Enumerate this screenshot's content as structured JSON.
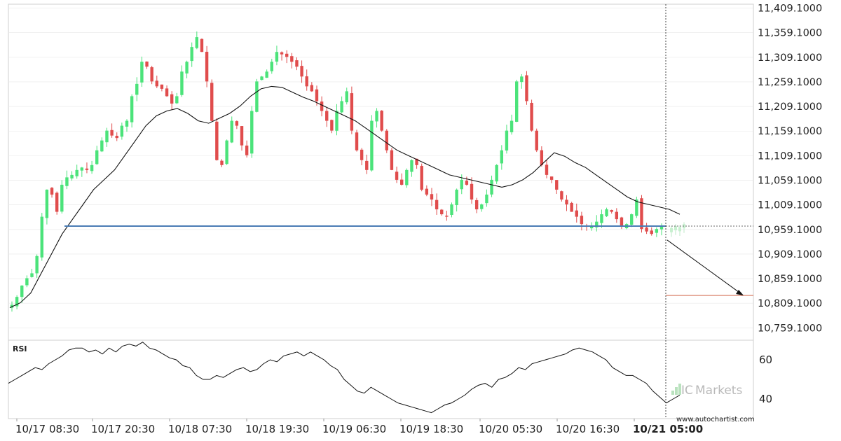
{
  "chart_data": [
    {
      "type": "candlestick",
      "name": "price-panel",
      "y_tick_labels": [
        "11,409.1000",
        "11,359.1000",
        "11,309.1000",
        "11,259.1000",
        "11,209.1000",
        "11,159.1000",
        "11,109.1000",
        "11,059.1000",
        "11,009.1000",
        "10,959.1000",
        "10,909.1000",
        "10,859.1000",
        "10,809.1000",
        "10,759.1000"
      ],
      "ylim": [
        10734,
        11417
      ],
      "x_tick_labels": [
        "10/17 08:30",
        "10/17 20:30",
        "10/18 07:30",
        "10/18 19:30",
        "10/19 06:30",
        "10/19 18:30",
        "10/20 05:30",
        "10/20 16:30",
        "10/21 05:00"
      ],
      "highlight_x_label": "10/21 05:00",
      "support_level": 10966,
      "target_level": 10825,
      "ohlc_anchor_closes": [
        10806,
        10822,
        10845,
        10860,
        10870,
        10905,
        10985,
        11040,
        11030,
        10995,
        11050,
        11065,
        11070,
        11080,
        11085,
        11080,
        11090,
        11120,
        11140,
        11160,
        11150,
        11145,
        11170,
        11180,
        11230,
        11255,
        11300,
        11290,
        11260,
        11250,
        11245,
        11230,
        11215,
        11230,
        11280,
        11300,
        11330,
        11350,
        11320,
        11260,
        11180,
        11100,
        11090,
        11140,
        11180,
        11170,
        11130,
        11110,
        11200,
        11260,
        11270,
        11280,
        11300,
        11320,
        11315,
        11310,
        11300,
        11290,
        11270,
        11250,
        11240,
        11220,
        11200,
        11180,
        11160,
        11200,
        11220,
        11240,
        11160,
        11120,
        11100,
        11080,
        11180,
        11200,
        11160,
        11120,
        11080,
        11060,
        11050,
        11080,
        11100,
        11090,
        11040,
        11030,
        11020,
        11000,
        10990,
        10985,
        11010,
        11040,
        11060,
        11050,
        11020,
        11000,
        11010,
        11030,
        11060,
        11090,
        11120,
        11160,
        11180,
        11260,
        11270,
        11220,
        11160,
        11120,
        11090,
        11070,
        11060,
        11040,
        11020,
        11010,
        10995,
        10985,
        10970,
        10965,
        10965,
        10975,
        10990,
        11000,
        10995,
        10980,
        10965,
        10970,
        10990,
        11020,
        10960,
        10955,
        10950,
        10960,
        10965
      ],
      "moving_average": [
        10800,
        10810,
        10830,
        10870,
        10910,
        10950,
        10980,
        11010,
        11040,
        11060,
        11080,
        11110,
        11140,
        11170,
        11190,
        11200,
        11205,
        11195,
        11180,
        11175,
        11185,
        11195,
        11210,
        11230,
        11245,
        11250,
        11248,
        11238,
        11228,
        11220,
        11210,
        11200,
        11190,
        11180,
        11165,
        11150,
        11135,
        11120,
        11110,
        11100,
        11090,
        11080,
        11070,
        11065,
        11060,
        11055,
        11050,
        11045,
        11050,
        11060,
        11075,
        11095,
        11115,
        11108,
        11095,
        11085,
        11070,
        11055,
        11040,
        11025,
        11015,
        11010,
        11005,
        11000,
        10990
      ],
      "arrow_target_y": 10825,
      "series": [
        {
          "values": [
            10806,
            10822,
            10845,
            10860,
            10870,
            10905,
            10985,
            11040,
            11030,
            10995,
            11050,
            11065,
            11070,
            11080,
            11085,
            11080,
            11090,
            11120,
            11140,
            11160,
            11150,
            11145,
            11170,
            11180,
            11230,
            11255,
            11300,
            11290,
            11260,
            11250,
            11245,
            11230,
            11215,
            11230,
            11280,
            11300,
            11330,
            11350,
            11320,
            11260,
            11180,
            11100,
            11090,
            11140,
            11180,
            11170,
            11130,
            11110,
            11200,
            11260,
            11270,
            11280,
            11300,
            11320,
            11315,
            11310,
            11300,
            11290,
            11270,
            11250,
            11240,
            11220,
            11200,
            11180,
            11160,
            11200,
            11220,
            11240,
            11160,
            11120,
            11100,
            11080,
            11180,
            11200,
            11160,
            11120,
            11080,
            11060,
            11050,
            11080,
            11100,
            11090,
            11040,
            11030,
            11020,
            11000,
            10990,
            10985,
            11010,
            11040,
            11060,
            11050,
            11020,
            11000,
            11010,
            11030,
            11060,
            11090,
            11120,
            11160,
            11180,
            11260,
            11270,
            11220,
            11160,
            11120,
            11090,
            11070,
            11060,
            11040,
            11020,
            11010,
            10995,
            10985,
            10970,
            10965,
            10965,
            10975,
            10990,
            11000,
            10995,
            10980,
            10965,
            10970,
            10990,
            11020,
            10960,
            10955,
            10950,
            10960,
            10965
          ]
        },
        {
          "values": [
            10800,
            10810,
            10830,
            10870,
            10910,
            10950,
            10980,
            11010,
            11040,
            11060,
            11080,
            11110,
            11140,
            11170,
            11190,
            11200,
            11205,
            11195,
            11180,
            11175,
            11185,
            11195,
            11210,
            11230,
            11245,
            11250,
            11248,
            11238,
            11228,
            11220,
            11210,
            11200,
            11190,
            11180,
            11165,
            11150,
            11135,
            11120,
            11110,
            11100,
            11090,
            11080,
            11070,
            11065,
            11060,
            11055,
            11050,
            11045,
            11050,
            11060,
            11075,
            11095,
            11115,
            11108,
            11095,
            11085,
            11070,
            11055,
            11040,
            11025,
            11015,
            11010,
            11005,
            11000,
            10990
          ]
        }
      ]
    },
    {
      "type": "line",
      "name": "rsi-panel",
      "title": "RSI",
      "y_tick_labels": [
        "60",
        "40"
      ],
      "ylim": [
        30,
        70
      ],
      "values": [
        48,
        50,
        52,
        54,
        56,
        55,
        58,
        60,
        62,
        65,
        66,
        66,
        64,
        65,
        63,
        66,
        64,
        67,
        68,
        67,
        69,
        66,
        65,
        63,
        61,
        60,
        57,
        56,
        52,
        50,
        50,
        52,
        51,
        53,
        55,
        56,
        54,
        55,
        58,
        60,
        59,
        62,
        63,
        64,
        62,
        64,
        62,
        60,
        57,
        55,
        50,
        47,
        44,
        43,
        46,
        44,
        42,
        40,
        38,
        37,
        36,
        35,
        34,
        33,
        35,
        37,
        38,
        40,
        42,
        45,
        47,
        48,
        46,
        50,
        51,
        53,
        56,
        55,
        58,
        59,
        60,
        61,
        62,
        63,
        65,
        66,
        65,
        64,
        62,
        60,
        56,
        54,
        52,
        52,
        50,
        48,
        44,
        41,
        38,
        40,
        42
      ]
    }
  ],
  "watermarks": {
    "brand_prefix": "IC",
    "brand_name": "Markets",
    "credit": "www.autochartist.com"
  },
  "colors": {
    "bull": "#4be37a",
    "bear": "#e04c4c",
    "support": "#4a7cb5",
    "target": "#d5735a",
    "ma": "#111111",
    "grid": "#e8e8e8"
  }
}
